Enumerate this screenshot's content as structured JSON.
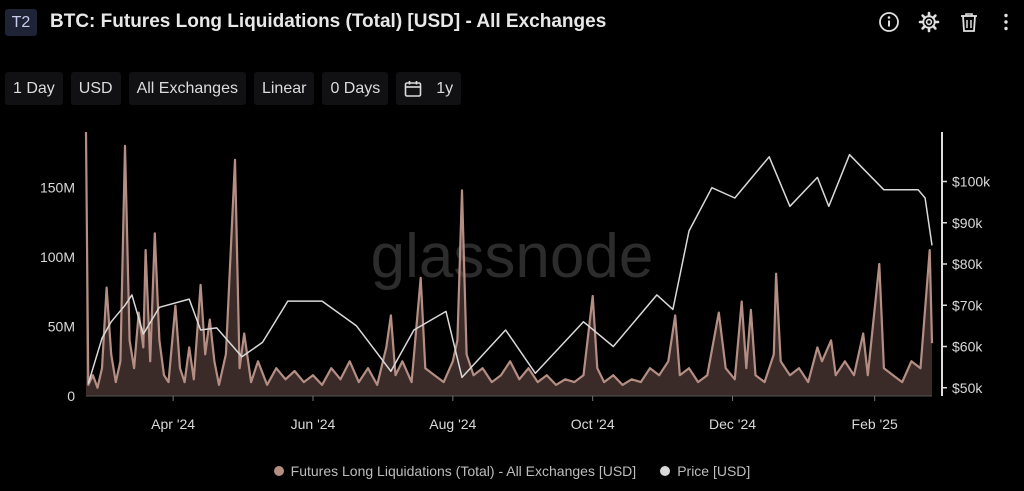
{
  "header": {
    "badge": "T2",
    "title": "BTC: Futures Long Liquidations (Total) [USD] - All Exchanges",
    "icons": [
      "info-icon",
      "gear-icon",
      "trash-icon",
      "more-vertical-icon"
    ]
  },
  "toolbar": {
    "resolution": "1 Day",
    "currency": "USD",
    "exchange": "All Exchanges",
    "scale": "Linear",
    "sma": "0 Days",
    "range": "1y"
  },
  "watermark": "glassnode",
  "colors": {
    "liquidations": "#b58e83",
    "price": "#d9d9d9",
    "axis": "#d9d9d9"
  },
  "chart_data": {
    "type": "line",
    "x_range": [
      "2024-02-23",
      "2025-02-26"
    ],
    "x_ticks": [
      "Apr '24",
      "Jun '24",
      "Aug '24",
      "Oct '24",
      "Dec '24",
      "Feb '25"
    ],
    "y_left": {
      "ticks": [
        "0",
        "50M",
        "100M",
        "150M"
      ],
      "range": [
        0,
        190000000
      ]
    },
    "y_right": {
      "ticks": [
        "$50k",
        "$60k",
        "$70k",
        "$80k",
        "$90k",
        "$100k"
      ],
      "range": [
        48000,
        112000
      ]
    },
    "series": [
      {
        "name": "Futures Long Liquidations (Total) - All Exchanges [USD]",
        "axis": "left",
        "style": "area",
        "points": [
          [
            "2024-02-23",
            190000000
          ],
          [
            "2024-02-24",
            8000000
          ],
          [
            "2024-02-26",
            15000000
          ],
          [
            "2024-02-28",
            6000000
          ],
          [
            "2024-03-01",
            20000000
          ],
          [
            "2024-03-03",
            78000000
          ],
          [
            "2024-03-05",
            30000000
          ],
          [
            "2024-03-07",
            10000000
          ],
          [
            "2024-03-09",
            25000000
          ],
          [
            "2024-03-11",
            180000000
          ],
          [
            "2024-03-13",
            40000000
          ],
          [
            "2024-03-15",
            20000000
          ],
          [
            "2024-03-17",
            60000000
          ],
          [
            "2024-03-19",
            35000000
          ],
          [
            "2024-03-20",
            105000000
          ],
          [
            "2024-03-22",
            25000000
          ],
          [
            "2024-03-24",
            117000000
          ],
          [
            "2024-03-26",
            40000000
          ],
          [
            "2024-03-28",
            15000000
          ],
          [
            "2024-03-30",
            10000000
          ],
          [
            "2024-04-02",
            65000000
          ],
          [
            "2024-04-04",
            20000000
          ],
          [
            "2024-04-06",
            10000000
          ],
          [
            "2024-04-08",
            35000000
          ],
          [
            "2024-04-10",
            12000000
          ],
          [
            "2024-04-13",
            80000000
          ],
          [
            "2024-04-15",
            30000000
          ],
          [
            "2024-04-17",
            55000000
          ],
          [
            "2024-04-19",
            25000000
          ],
          [
            "2024-04-21",
            8000000
          ],
          [
            "2024-04-24",
            30000000
          ],
          [
            "2024-04-28",
            170000000
          ],
          [
            "2024-04-30",
            20000000
          ],
          [
            "2024-05-02",
            45000000
          ],
          [
            "2024-05-05",
            10000000
          ],
          [
            "2024-05-08",
            25000000
          ],
          [
            "2024-05-12",
            8000000
          ],
          [
            "2024-05-16",
            20000000
          ],
          [
            "2024-05-20",
            12000000
          ],
          [
            "2024-05-24",
            18000000
          ],
          [
            "2024-05-28",
            10000000
          ],
          [
            "2024-06-01",
            15000000
          ],
          [
            "2024-06-05",
            8000000
          ],
          [
            "2024-06-09",
            20000000
          ],
          [
            "2024-06-13",
            12000000
          ],
          [
            "2024-06-17",
            25000000
          ],
          [
            "2024-06-21",
            10000000
          ],
          [
            "2024-06-25",
            20000000
          ],
          [
            "2024-06-29",
            8000000
          ],
          [
            "2024-07-03",
            35000000
          ],
          [
            "2024-07-05",
            58000000
          ],
          [
            "2024-07-07",
            15000000
          ],
          [
            "2024-07-10",
            25000000
          ],
          [
            "2024-07-14",
            10000000
          ],
          [
            "2024-07-18",
            85000000
          ],
          [
            "2024-07-20",
            20000000
          ],
          [
            "2024-07-24",
            15000000
          ],
          [
            "2024-07-28",
            10000000
          ],
          [
            "2024-08-01",
            25000000
          ],
          [
            "2024-08-03",
            40000000
          ],
          [
            "2024-08-05",
            148000000
          ],
          [
            "2024-08-07",
            30000000
          ],
          [
            "2024-08-10",
            15000000
          ],
          [
            "2024-08-14",
            20000000
          ],
          [
            "2024-08-18",
            10000000
          ],
          [
            "2024-08-22",
            15000000
          ],
          [
            "2024-08-26",
            25000000
          ],
          [
            "2024-08-30",
            12000000
          ],
          [
            "2024-09-03",
            20000000
          ],
          [
            "2024-09-07",
            10000000
          ],
          [
            "2024-09-11",
            15000000
          ],
          [
            "2024-09-15",
            8000000
          ],
          [
            "2024-09-19",
            12000000
          ],
          [
            "2024-09-23",
            10000000
          ],
          [
            "2024-09-27",
            15000000
          ],
          [
            "2024-10-01",
            72000000
          ],
          [
            "2024-10-03",
            20000000
          ],
          [
            "2024-10-06",
            10000000
          ],
          [
            "2024-10-10",
            15000000
          ],
          [
            "2024-10-14",
            8000000
          ],
          [
            "2024-10-18",
            12000000
          ],
          [
            "2024-10-22",
            10000000
          ],
          [
            "2024-10-26",
            20000000
          ],
          [
            "2024-10-30",
            15000000
          ],
          [
            "2024-11-03",
            25000000
          ],
          [
            "2024-11-06",
            58000000
          ],
          [
            "2024-11-08",
            15000000
          ],
          [
            "2024-11-12",
            20000000
          ],
          [
            "2024-11-16",
            10000000
          ],
          [
            "2024-11-20",
            15000000
          ],
          [
            "2024-11-25",
            60000000
          ],
          [
            "2024-11-28",
            20000000
          ],
          [
            "2024-12-02",
            12000000
          ],
          [
            "2024-12-05",
            68000000
          ],
          [
            "2024-12-07",
            20000000
          ],
          [
            "2024-12-09",
            62000000
          ],
          [
            "2024-12-11",
            15000000
          ],
          [
            "2024-12-15",
            10000000
          ],
          [
            "2024-12-19",
            30000000
          ],
          [
            "2024-12-20",
            88000000
          ],
          [
            "2024-12-22",
            25000000
          ],
          [
            "2024-12-26",
            15000000
          ],
          [
            "2024-12-30",
            20000000
          ],
          [
            "2025-01-03",
            10000000
          ],
          [
            "2025-01-07",
            35000000
          ],
          [
            "2025-01-09",
            25000000
          ],
          [
            "2025-01-13",
            40000000
          ],
          [
            "2025-01-15",
            15000000
          ],
          [
            "2025-01-19",
            25000000
          ],
          [
            "2025-01-23",
            15000000
          ],
          [
            "2025-01-27",
            45000000
          ],
          [
            "2025-01-29",
            15000000
          ],
          [
            "2025-02-03",
            95000000
          ],
          [
            "2025-02-05",
            20000000
          ],
          [
            "2025-02-09",
            15000000
          ],
          [
            "2025-02-13",
            10000000
          ],
          [
            "2025-02-17",
            25000000
          ],
          [
            "2025-02-21",
            20000000
          ],
          [
            "2025-02-25",
            105000000
          ],
          [
            "2025-02-26",
            38000000
          ]
        ]
      },
      {
        "name": "Price [USD]",
        "axis": "right",
        "style": "line",
        "points": [
          [
            "2024-02-24",
            51000
          ],
          [
            "2024-03-01",
            62000
          ],
          [
            "2024-03-05",
            66000
          ],
          [
            "2024-03-11",
            70000
          ],
          [
            "2024-03-14",
            72500
          ],
          [
            "2024-03-19",
            63000
          ],
          [
            "2024-03-26",
            69500
          ],
          [
            "2024-04-08",
            71500
          ],
          [
            "2024-04-13",
            64000
          ],
          [
            "2024-04-20",
            64500
          ],
          [
            "2024-05-01",
            57500
          ],
          [
            "2024-05-10",
            61000
          ],
          [
            "2024-05-21",
            71000
          ],
          [
            "2024-06-05",
            71000
          ],
          [
            "2024-06-20",
            65000
          ],
          [
            "2024-07-05",
            54000
          ],
          [
            "2024-07-15",
            64000
          ],
          [
            "2024-07-29",
            68500
          ],
          [
            "2024-08-05",
            52500
          ],
          [
            "2024-08-24",
            64000
          ],
          [
            "2024-09-06",
            53500
          ],
          [
            "2024-09-27",
            66000
          ],
          [
            "2024-10-10",
            60000
          ],
          [
            "2024-10-29",
            72500
          ],
          [
            "2024-11-05",
            69000
          ],
          [
            "2024-11-12",
            88000
          ],
          [
            "2024-11-22",
            98500
          ],
          [
            "2024-12-02",
            96000
          ],
          [
            "2024-12-17",
            106000
          ],
          [
            "2024-12-26",
            94000
          ],
          [
            "2025-01-07",
            101000
          ],
          [
            "2025-01-12",
            94000
          ],
          [
            "2025-01-21",
            106500
          ],
          [
            "2025-02-05",
            98000
          ],
          [
            "2025-02-20",
            98000
          ],
          [
            "2025-02-23",
            96000
          ],
          [
            "2025-02-26",
            84500
          ]
        ]
      }
    ],
    "legend": "bottom-center",
    "grid": false
  }
}
